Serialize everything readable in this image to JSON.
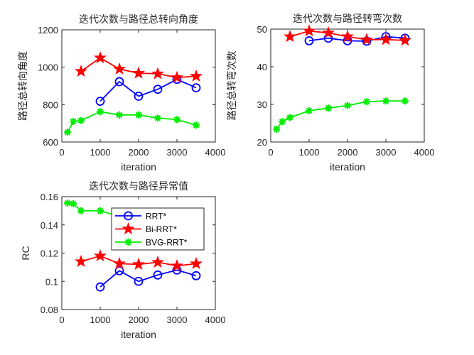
{
  "chart_data": [
    {
      "type": "line",
      "title": "迭代次数与路径总转向角度",
      "xlabel": "iteration",
      "ylabel": "路径总转向角度",
      "xlim": [
        0,
        4000
      ],
      "ylim": [
        600,
        1200
      ],
      "xticks": [
        0,
        1000,
        2000,
        3000,
        4000
      ],
      "yticks": [
        600,
        800,
        1000,
        1200
      ],
      "grid": false,
      "series": [
        {
          "name": "RRT*",
          "color": "#0000ff",
          "marker": "circle",
          "x": [
            1000,
            1500,
            2000,
            2500,
            3000,
            3500
          ],
          "y": [
            818,
            923,
            845,
            882,
            935,
            890
          ]
        },
        {
          "name": "Bi-RRT*",
          "color": "#ff0000",
          "marker": "pentagram",
          "x": [
            500,
            1000,
            1500,
            2000,
            2500,
            3000,
            3500
          ],
          "y": [
            978,
            1050,
            990,
            968,
            965,
            945,
            952
          ]
        },
        {
          "name": "BVG-RRT*",
          "color": "#00ee00",
          "marker": "asterisk",
          "x": [
            150,
            300,
            500,
            1000,
            1500,
            2000,
            2500,
            3000,
            3500
          ],
          "y": [
            652,
            710,
            715,
            762,
            745,
            745,
            728,
            720,
            690
          ]
        }
      ]
    },
    {
      "type": "line",
      "title": "迭代次数与路径转弯次数",
      "xlabel": "iteration",
      "ylabel": "路径总转弯次数",
      "xlim": [
        0,
        4000
      ],
      "ylim": [
        20,
        50
      ],
      "xticks": [
        0,
        1000,
        2000,
        3000,
        4000
      ],
      "yticks": [
        20,
        30,
        40,
        50
      ],
      "grid": false,
      "series": [
        {
          "name": "RRT*",
          "color": "#0000ff",
          "marker": "circle",
          "x": [
            1000,
            1500,
            2000,
            2500,
            3000,
            3500
          ],
          "y": [
            46.9,
            47.6,
            46.9,
            46.8,
            48.0,
            47.6
          ]
        },
        {
          "name": "Bi-RRT*",
          "color": "#ff0000",
          "marker": "pentagram",
          "x": [
            500,
            1000,
            1500,
            2000,
            2500,
            3000,
            3500
          ],
          "y": [
            48.0,
            49.5,
            49.0,
            48.0,
            47.2,
            47.2,
            47.0
          ]
        },
        {
          "name": "BVG-RRT*",
          "color": "#00ee00",
          "marker": "asterisk",
          "x": [
            150,
            300,
            500,
            1000,
            1500,
            2000,
            2500,
            3000,
            3500
          ],
          "y": [
            23.4,
            25.4,
            26.5,
            28.3,
            29.0,
            29.7,
            30.7,
            30.9,
            30.9
          ]
        }
      ]
    },
    {
      "type": "line",
      "title": "迭代次数与路径异常值",
      "xlabel": "iteration",
      "ylabel": "RC",
      "xlim": [
        0,
        4000
      ],
      "ylim": [
        0.08,
        0.16
      ],
      "xticks": [
        0,
        1000,
        2000,
        3000,
        4000
      ],
      "yticks": [
        0.08,
        0.1,
        0.12,
        0.14,
        0.16
      ],
      "grid": false,
      "legend": {
        "placement": "top-right",
        "entries": [
          "RRT*",
          "Bi-RRT*",
          "BVG-RRT*"
        ]
      },
      "series": [
        {
          "name": "RRT*",
          "color": "#0000ff",
          "marker": "circle",
          "x": [
            1000,
            1500,
            2000,
            2500,
            3000,
            3500
          ],
          "y": [
            0.096,
            0.1075,
            0.1,
            0.1045,
            0.108,
            0.104
          ]
        },
        {
          "name": "Bi-RRT*",
          "color": "#ff0000",
          "marker": "pentagram",
          "x": [
            500,
            1000,
            1500,
            2000,
            2500,
            3000,
            3500
          ],
          "y": [
            0.114,
            0.118,
            0.1125,
            0.112,
            0.1135,
            0.111,
            0.1125
          ]
        },
        {
          "name": "BVG-RRT*",
          "color": "#00ee00",
          "marker": "asterisk",
          "x": [
            150,
            300,
            500,
            1000,
            1500
          ],
          "y": [
            0.1555,
            0.155,
            0.15,
            0.15,
            0.146
          ]
        }
      ]
    }
  ]
}
